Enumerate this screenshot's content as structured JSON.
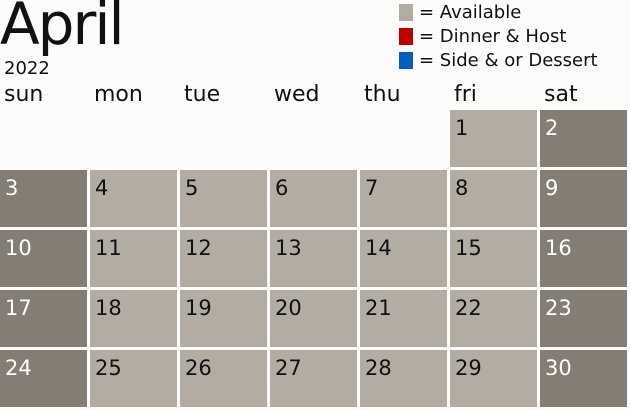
{
  "title": "April",
  "year": "2022",
  "legend": [
    {
      "color": "#b3aca3",
      "label": "= Available"
    },
    {
      "color": "#c00000",
      "label": "= Dinner & Host"
    },
    {
      "color": "#005fbf",
      "label": "= Side & or Dessert"
    }
  ],
  "weekdays": [
    "sun",
    "mon",
    "tue",
    "wed",
    "thu",
    "fri",
    "sat"
  ],
  "first_weekday": 5,
  "days": [
    "1",
    "2",
    "3",
    "4",
    "5",
    "6",
    "7",
    "8",
    "9",
    "10",
    "11",
    "12",
    "13",
    "14",
    "15",
    "16",
    "17",
    "18",
    "19",
    "20",
    "21",
    "22",
    "23",
    "24",
    "25",
    "26",
    "27",
    "28",
    "29",
    "30"
  ],
  "colors": {
    "weekday": "#b3aca3",
    "weekend": "#847d74"
  }
}
